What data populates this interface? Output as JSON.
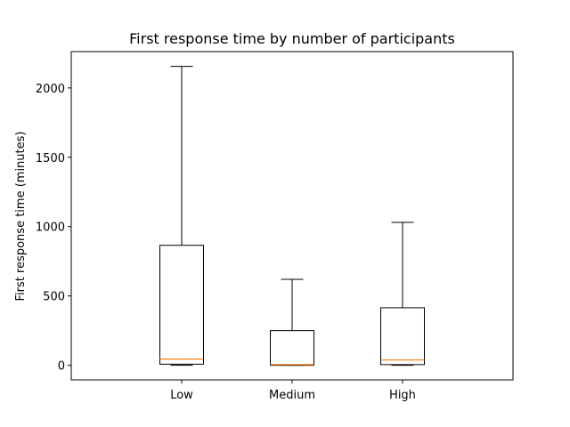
{
  "chart_data": {
    "type": "box",
    "title": "First response time by number of participants",
    "xlabel": "",
    "ylabel": "First response time (minutes)",
    "ylim": [
      -105,
      2262
    ],
    "yticks": [
      0,
      500,
      1000,
      1500,
      2000
    ],
    "yticklabels": [
      "0",
      "500",
      "1000",
      "1500",
      "2000"
    ],
    "grid": false,
    "categories": [
      "Low",
      "Medium",
      "High"
    ],
    "boxes": [
      {
        "label": "Low",
        "whisker_low": 0,
        "q1": 8,
        "median": 45,
        "q3": 865,
        "whisker_high": 2155
      },
      {
        "label": "Medium",
        "whisker_low": 0,
        "q1": 0,
        "median": 5,
        "q3": 250,
        "whisker_high": 620
      },
      {
        "label": "High",
        "whisker_low": 0,
        "q1": 5,
        "median": 38,
        "q3": 415,
        "whisker_high": 1030
      }
    ],
    "colors": {
      "box": "#000000",
      "median": "#ff7f0e",
      "frame": "#000000"
    }
  }
}
